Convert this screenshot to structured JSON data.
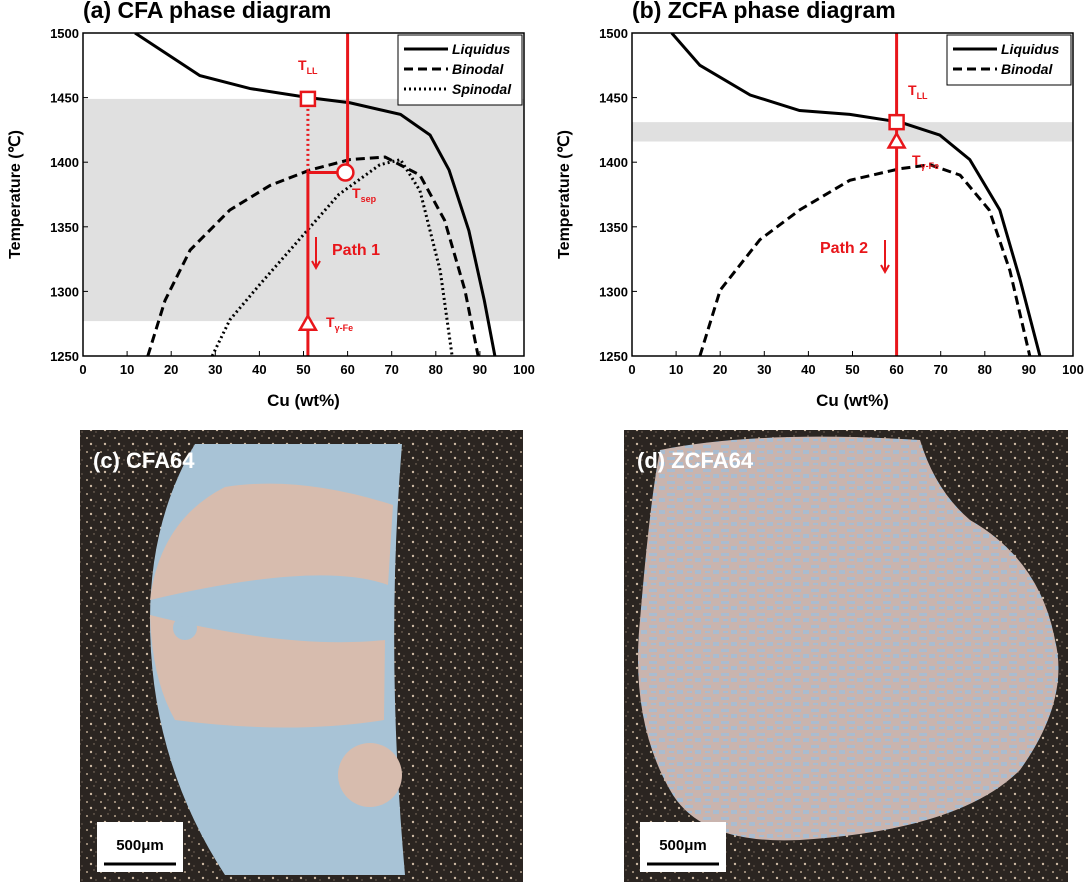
{
  "chart_data": [
    {
      "type": "line",
      "title": "(a) CFA phase diagram",
      "x_label": "Cu (wt%)",
      "y_label": "Temperature (℃)",
      "xlim": [
        0,
        100
      ],
      "ylim": [
        1250,
        1500
      ],
      "xticks": [
        0,
        10,
        20,
        30,
        40,
        50,
        60,
        70,
        80,
        90,
        100
      ],
      "yticks": [
        1250,
        1300,
        1350,
        1400,
        1450,
        1500
      ],
      "legend": "upper right",
      "series": [
        {
          "name": "Liquidus",
          "color": "#000000",
          "style": "solid",
          "x": [
            11.8,
            26.5,
            37.9,
            51.2,
            60.5,
            72,
            78.7,
            83,
            87.5,
            91,
            93.4
          ],
          "values": [
            1500,
            1467,
            1457,
            1450,
            1446,
            1437,
            1421,
            1394,
            1347,
            1293,
            1250
          ]
        },
        {
          "name": "Binodal",
          "color": "#000000",
          "style": "dashed",
          "x": [
            14.7,
            18.6,
            24.3,
            33.3,
            42.4,
            51.5,
            60.5,
            68.5,
            76.4,
            82,
            86.6,
            89.6
          ],
          "values": [
            1250,
            1293,
            1332,
            1363,
            1382,
            1394,
            1402,
            1404,
            1390,
            1355,
            1301,
            1250
          ]
        },
        {
          "name": "Spinodal",
          "color": "#000000",
          "style": "dotted",
          "x": [
            29.3,
            33.3,
            40,
            49,
            58,
            67.3,
            72,
            76.4,
            81,
            83.7
          ],
          "values": [
            1250,
            1278,
            1305,
            1340,
            1375,
            1398,
            1402,
            1378,
            1316,
            1250
          ]
        }
      ],
      "band": [
        1277,
        1449
      ],
      "band_color": "#e0e0e0",
      "guide_color": "#e8161b",
      "guides": [
        {
          "style": "solid",
          "x": [
            60,
            60,
            51,
            51
          ],
          "values": [
            1500,
            1392,
            1392,
            1250
          ]
        },
        {
          "style": "dotted",
          "x": [
            51,
            51
          ],
          "values": [
            1449,
            1392
          ]
        }
      ],
      "markers": [
        {
          "shape": "square",
          "x": 51,
          "y": 1449
        },
        {
          "shape": "circle",
          "x": 59.5,
          "y": 1392
        },
        {
          "shape": "triangle",
          "x": 51,
          "y": 1275
        }
      ],
      "annotations": [
        {
          "text": "T",
          "sub": "LL"
        },
        {
          "text": "T",
          "sub": "sep"
        },
        {
          "text": "Path 1"
        },
        {
          "text": "T",
          "sub": "γ-Fe"
        }
      ]
    },
    {
      "type": "line",
      "title": "(b) ZCFA phase diagram",
      "x_label": "Cu (wt%)",
      "y_label": "Temperature (℃)",
      "xlim": [
        0,
        100
      ],
      "ylim": [
        1250,
        1500
      ],
      "xticks": [
        0,
        10,
        20,
        30,
        40,
        50,
        60,
        70,
        80,
        90,
        100
      ],
      "yticks": [
        1250,
        1300,
        1350,
        1400,
        1450,
        1500
      ],
      "legend": "upper right",
      "series": [
        {
          "name": "Liquidus",
          "color": "#000000",
          "style": "solid",
          "x": [
            9,
            15.4,
            26.8,
            38,
            49.4,
            60.8,
            69.8,
            76.6,
            83.4,
            88,
            92.5
          ],
          "values": [
            1500,
            1475,
            1452,
            1440,
            1437,
            1431,
            1421,
            1402,
            1363,
            1309,
            1250
          ]
        },
        {
          "name": "Binodal",
          "color": "#000000",
          "style": "dashed",
          "x": [
            15.4,
            20,
            29,
            38,
            49.4,
            60.8,
            67.6,
            74.4,
            81,
            85.7,
            90.2
          ],
          "values": [
            1250,
            1301,
            1340,
            1363,
            1386,
            1395,
            1398,
            1390,
            1363,
            1316,
            1250
          ]
        }
      ],
      "band": [
        1416,
        1431
      ],
      "band_color": "#e0e0e0",
      "guide_color": "#e8161b",
      "guides": [
        {
          "style": "solid",
          "x": [
            60,
            60
          ],
          "values": [
            1500,
            1250
          ]
        }
      ],
      "markers": [
        {
          "shape": "square",
          "x": 60,
          "y": 1431
        },
        {
          "shape": "triangle",
          "x": 60,
          "y": 1416
        }
      ],
      "annotations": [
        {
          "text": "T",
          "sub": "LL"
        },
        {
          "text": "T",
          "sub": "γ-Fe"
        },
        {
          "text": "Path 2"
        }
      ]
    }
  ],
  "micrographs": [
    {
      "label": "(c) CFA64",
      "scale_bar": "500μm"
    },
    {
      "label": "(d) ZCFA64",
      "scale_bar": "500μm"
    }
  ]
}
